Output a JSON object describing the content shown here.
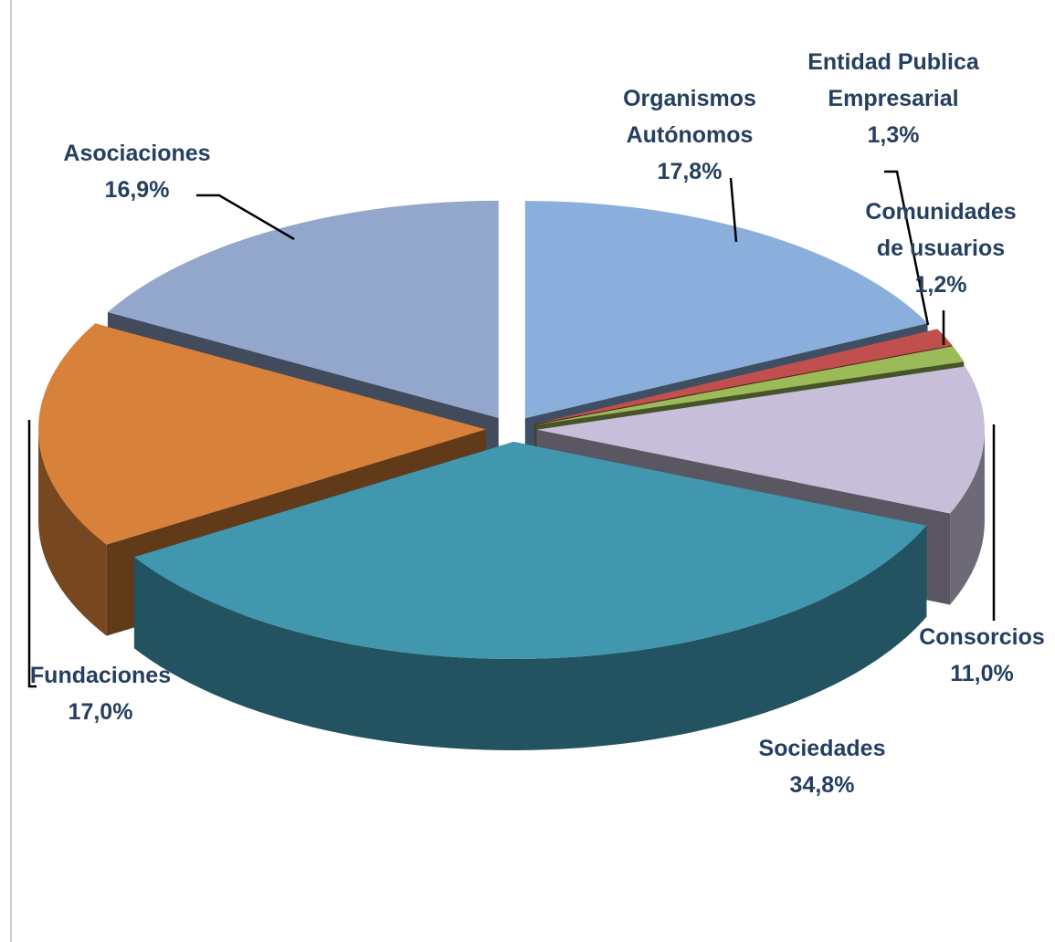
{
  "chart_data": {
    "type": "pie",
    "categories": [
      "Organismos Autónomos",
      "Entidad Publica Empresarial",
      "Comunidades de usuarios",
      "Consorcios",
      "Sociedades",
      "Fundaciones",
      "Asociaciones"
    ],
    "values": [
      17.8,
      1.3,
      1.2,
      11.0,
      34.8,
      17.0,
      16.9
    ],
    "value_labels": [
      "17,8%",
      "1,3%",
      "1,2%",
      "11,0%",
      "34,8%",
      "17,0%",
      "16,9%"
    ],
    "colors": [
      "#8aafdc",
      "#c0504d",
      "#9bbb59",
      "#c7bed9",
      "#4097ae",
      "#d8813a",
      "#93a6cc"
    ]
  }
}
